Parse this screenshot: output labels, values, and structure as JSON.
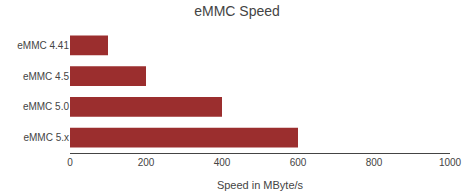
{
  "chart_data": {
    "type": "bar",
    "orientation": "horizontal",
    "title": "eMMC Speed",
    "categories": [
      "eMMC 4.41",
      "eMMC 4.5",
      "eMMC 5.0",
      "eMMC 5.x"
    ],
    "values": [
      100,
      200,
      400,
      600
    ],
    "color": "#9b2e2e",
    "xlabel": "Speed in MByte/s",
    "xlim": [
      0,
      1000
    ],
    "xticks": [
      0,
      200,
      400,
      600,
      800,
      1000
    ],
    "grid": false
  }
}
